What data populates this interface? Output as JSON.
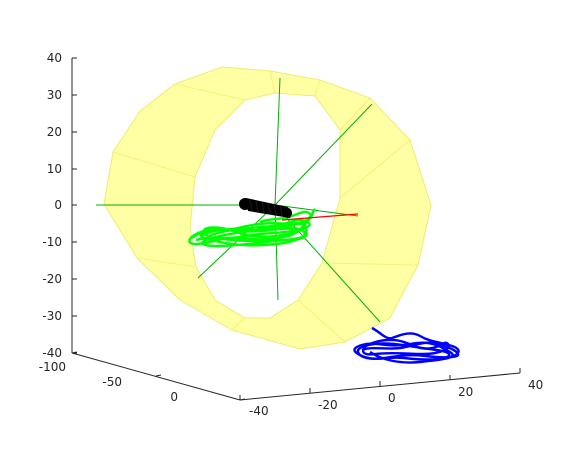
{
  "chart_data": {
    "type": "3d-line",
    "title": "",
    "xlabel": "",
    "ylabel": "",
    "zlabel": "",
    "grid": false,
    "legend": "none",
    "axes": {
      "x": {
        "ticks": [
          "-40",
          "-20",
          "0",
          "20",
          "40"
        ],
        "lim": [
          -40,
          40
        ]
      },
      "y": {
        "ticks": [
          "-100",
          "-50",
          "0"
        ],
        "lim": [
          -100,
          0
        ]
      },
      "z": {
        "ticks": [
          "40",
          "30",
          "20",
          "10",
          "0",
          "-10",
          "-20",
          "-30",
          "-40"
        ],
        "lim": [
          -40,
          40
        ]
      }
    },
    "objects": [
      {
        "kind": "cylinder-surface",
        "color": "#ffff99",
        "edge_color": "#e8e84a"
      },
      {
        "kind": "support-lines",
        "color": "#00b000",
        "count": 7
      },
      {
        "kind": "trajectory",
        "color": "#00ff00",
        "note": "tangled path inside ring"
      },
      {
        "kind": "trajectory-projection",
        "color": "#0000ff",
        "note": "floor projection"
      },
      {
        "kind": "body",
        "color": "#000000"
      },
      {
        "kind": "direction-vector",
        "color": "#ff0000"
      }
    ]
  }
}
